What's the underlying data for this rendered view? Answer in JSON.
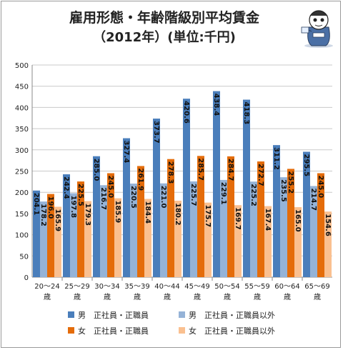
{
  "title_line1": "雇用形態・年齢階級別平均賃金",
  "title_line2": "（2012年）(単位:千円)",
  "chart_data": {
    "type": "bar",
    "title": "雇用形態・年齢階級別平均賃金（2012年）(単位:千円)",
    "categories": [
      "20～24歳",
      "25～29歳",
      "30～34歳",
      "35～39歳",
      "40～44歳",
      "45～49歳",
      "50～54歳",
      "55～59歳",
      "60～64歳",
      "65～69歳"
    ],
    "category_lines": [
      [
        "20～24",
        "歳"
      ],
      [
        "25～29",
        "歳"
      ],
      [
        "30～34",
        "歳"
      ],
      [
        "35～39",
        "歳"
      ],
      [
        "40～44",
        "歳"
      ],
      [
        "45～49",
        "歳"
      ],
      [
        "50～54",
        "歳"
      ],
      [
        "55～59",
        "歳"
      ],
      [
        "60～64",
        "歳"
      ],
      [
        "65～69",
        "歳"
      ]
    ],
    "series": [
      {
        "name": "男　正社員・正職員",
        "color": "#4a7ebb",
        "values": [
          204.1,
          242.4,
          285.0,
          327.4,
          373.7,
          420.6,
          438.4,
          418.3,
          311.2,
          295.5
        ]
      },
      {
        "name": "男　正社員・正職員以外",
        "color": "#95b3d7",
        "values": [
          178.2,
          197.8,
          216.7,
          220.5,
          221.0,
          225.7,
          229.1,
          225.2,
          235.5,
          214.7
        ]
      },
      {
        "name": "女　正社員・正職員",
        "color": "#e46c0a",
        "values": [
          196.0,
          225.5,
          245.0,
          261.9,
          278.3,
          285.7,
          284.7,
          272.7,
          255.2,
          245.0
        ]
      },
      {
        "name": "女　正社員・正職員以外",
        "color": "#fac090",
        "values": [
          165.9,
          179.3,
          185.9,
          184.4,
          180.2,
          175.7,
          169.7,
          167.4,
          165.0,
          154.6
        ]
      }
    ],
    "ylim": [
      0,
      500
    ],
    "yticks": [
      0,
      50,
      100,
      150,
      200,
      250,
      300,
      350,
      400,
      450,
      500
    ],
    "ytick_labels": [
      "0",
      "50",
      "100",
      "150",
      "200",
      "250",
      "300",
      "350",
      "400",
      "450",
      "500"
    ],
    "grid": true,
    "legend_position": "bottom"
  }
}
